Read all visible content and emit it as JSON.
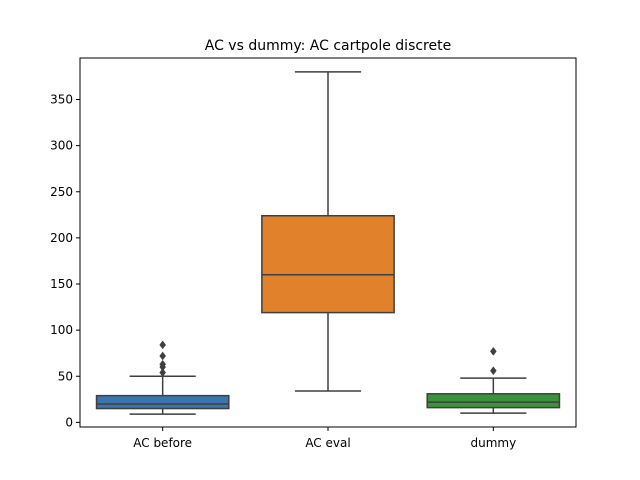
{
  "chart_data": {
    "type": "box",
    "title": "AC vs dummy: AC cartpole discrete",
    "xlabel": "",
    "ylabel": "",
    "ylim": [
      -5,
      395
    ],
    "yticks": [
      0,
      50,
      100,
      150,
      200,
      250,
      300,
      350
    ],
    "grid": false,
    "categories": [
      "AC before",
      "AC eval",
      "dummy"
    ],
    "boxes": [
      {
        "name": "AC before",
        "whisker_low": 9,
        "q1": 15,
        "median": 20,
        "q3": 29,
        "whisker_high": 50,
        "outliers": [
          54,
          60,
          63,
          72,
          84
        ],
        "color": "#3a75af"
      },
      {
        "name": "AC eval",
        "whisker_low": 34,
        "q1": 119,
        "median": 160,
        "q3": 224,
        "whisker_high": 380,
        "outliers": [],
        "color": "#e1812c"
      },
      {
        "name": "dummy",
        "whisker_low": 10,
        "q1": 16,
        "median": 22,
        "q3": 31,
        "whisker_high": 48,
        "outliers": [
          56,
          77
        ],
        "color": "#3a923a"
      }
    ],
    "line_color": "#3f3f3f"
  }
}
